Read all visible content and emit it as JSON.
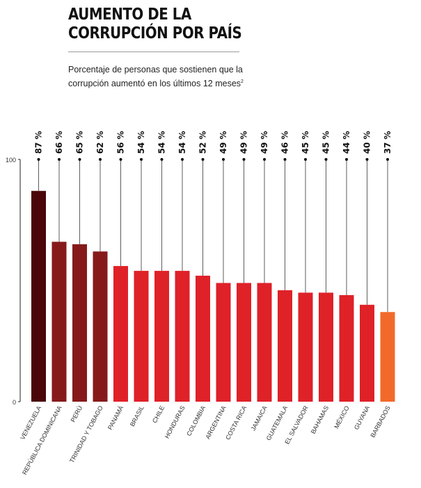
{
  "title_lines": [
    "AUMENTO DE LA",
    "CORRUPCIÓN POR PAÍS"
  ],
  "subtitle_lines": [
    "Porcentaje de personas que sostienen que la",
    "corrupción aumentó en los últimos 12 meses"
  ],
  "subtitle_footnote": "2",
  "chart_data": {
    "type": "bar",
    "categories": [
      "VENEZUELA",
      "REPÚBLICA DOMINICANA",
      "PERÚ",
      "TRINIDAD Y TOBAGO",
      "PANAMÁ",
      "BRASIL",
      "CHILE",
      "HONDURAS",
      "COLOMBIA",
      "ARGENTINA",
      "COSTA RICA",
      "JAMAICA",
      "GUATEMALA",
      "EL SALVADOR",
      "BAHAMAS",
      "MÉXICO",
      "GUYANA",
      "BARBADOS"
    ],
    "values": [
      87,
      66,
      65,
      62,
      56,
      54,
      54,
      54,
      52,
      49,
      49,
      49,
      46,
      45,
      45,
      44,
      40,
      37
    ],
    "value_labels": [
      "87 %",
      "66 %",
      "65 %",
      "62 %",
      "56 %",
      "54 %",
      "54 %",
      "54 %",
      "52 %",
      "49 %",
      "49 %",
      "49 %",
      "46 %",
      "45 %",
      "45 %",
      "44 %",
      "40 %",
      "37 %"
    ],
    "bar_colors": [
      "#4a0608",
      "#861a1b",
      "#861a1b",
      "#861a1b",
      "#df2128",
      "#df2128",
      "#df2128",
      "#df2128",
      "#df2128",
      "#df2128",
      "#df2128",
      "#df2128",
      "#df2128",
      "#df2128",
      "#df2128",
      "#df2128",
      "#df2128",
      "#f26a2a"
    ],
    "yticks": [
      "0",
      "100"
    ],
    "ylim": [
      0,
      100
    ],
    "title": "",
    "xlabel": "",
    "ylabel": "",
    "grid": false,
    "legend": "none"
  }
}
